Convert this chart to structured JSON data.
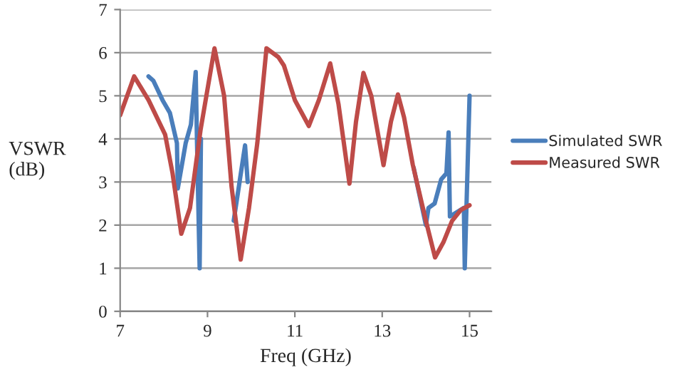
{
  "chart_data": {
    "type": "line",
    "xlabel": "Freq (GHz)",
    "ylabel": "VSWR\n(dB)",
    "xlim": [
      7,
      15.5
    ],
    "xticks": [
      7,
      9,
      11,
      13,
      15
    ],
    "ylim": [
      0,
      7
    ],
    "yticks": [
      0,
      1,
      2,
      3,
      4,
      5,
      6,
      7
    ],
    "grid": "y",
    "legend": "right",
    "marker": "none",
    "line_style": "solid",
    "series": [
      {
        "name": "Simulated SWR",
        "color": "#4a7ebb",
        "x": [
          7.65,
          7.76,
          7.97,
          8.14,
          8.3,
          8.32,
          8.5,
          8.62,
          8.73,
          8.76,
          8.82,
          8.85,
          9.5,
          9.6,
          9.86,
          9.92,
          9.95,
          13.72,
          14.0,
          14.06,
          14.2,
          14.35,
          14.47,
          14.52,
          14.55,
          14.87,
          14.89,
          15.0
        ],
        "values": [
          5.45,
          5.35,
          4.9,
          4.6,
          3.9,
          2.85,
          3.9,
          4.33,
          5.55,
          3.9,
          1.0,
          4.0,
          null,
          2.1,
          3.85,
          3.0,
          null,
          3.33,
          2.0,
          2.4,
          2.5,
          3.06,
          3.2,
          4.15,
          2.2,
          2.4,
          1.0,
          5.0
        ]
      },
      {
        "name": "Measured SWR",
        "color": "#be4b48",
        "x": [
          7,
          7.32,
          7.65,
          8.03,
          8.2,
          8.4,
          8.6,
          8.84,
          9.16,
          9.38,
          9.55,
          9.76,
          9.95,
          10.14,
          10.35,
          10.62,
          10.75,
          11.0,
          11.32,
          11.55,
          11.81,
          12.0,
          12.25,
          12.4,
          12.57,
          12.75,
          13.03,
          13.2,
          13.36,
          13.5,
          13.7,
          14.0,
          14.21,
          14.4,
          14.6,
          14.8,
          15.0
        ],
        "values": [
          4.55,
          5.45,
          4.9,
          4.1,
          3.2,
          1.8,
          2.4,
          4.2,
          6.1,
          5.0,
          2.9,
          1.2,
          2.4,
          3.9,
          6.1,
          5.9,
          5.7,
          4.9,
          4.3,
          4.9,
          5.75,
          4.8,
          2.96,
          4.4,
          5.53,
          5.0,
          3.39,
          4.4,
          5.03,
          4.5,
          3.4,
          2.1,
          1.25,
          1.6,
          2.1,
          2.35,
          2.46
        ]
      }
    ]
  }
}
